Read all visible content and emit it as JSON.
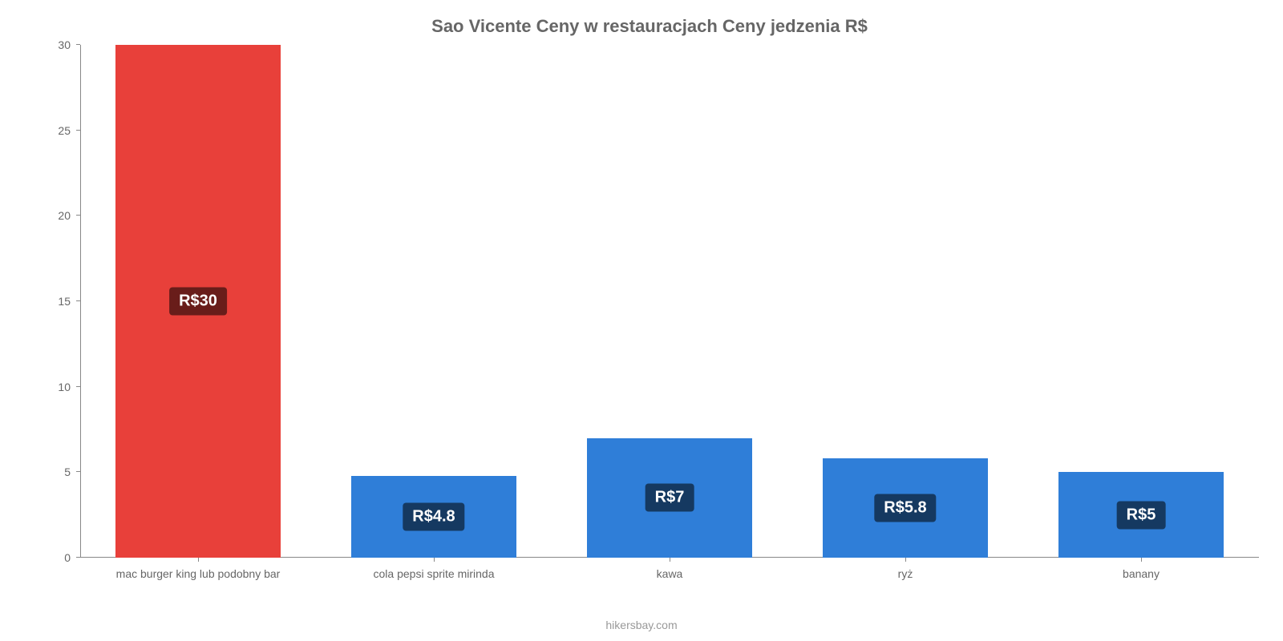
{
  "chart": {
    "type": "bar",
    "title": "Sao Vicente Ceny w restauracjach Ceny jedzenia R$",
    "title_fontsize": 22,
    "title_color": "#666666",
    "background_color": "#ffffff",
    "axis_color": "#888888",
    "label_color": "#666666",
    "label_fontsize": 14,
    "ylim": [
      0,
      30
    ],
    "ytick_step": 5,
    "yticks": [
      0,
      5,
      10,
      15,
      20,
      25,
      30
    ],
    "bar_width": 0.7,
    "categories": [
      "mac burger king lub podobny bar",
      "cola pepsi sprite mirinda",
      "kawa",
      "ryż",
      "banany"
    ],
    "values": [
      30,
      4.8,
      7,
      5.8,
      5
    ],
    "value_labels": [
      "R$30",
      "R$4.8",
      "R$7",
      "R$5.8",
      "R$5"
    ],
    "bar_colors": [
      "#e8403a",
      "#2f7ed8",
      "#2f7ed8",
      "#2f7ed8",
      "#2f7ed8"
    ],
    "badge_bg": "rgba(0,0,0,0.55)",
    "badge_text_color": "#ffffff",
    "badge_fontsize": 20,
    "attribution": "hikersbay.com",
    "attribution_color": "#999999"
  }
}
